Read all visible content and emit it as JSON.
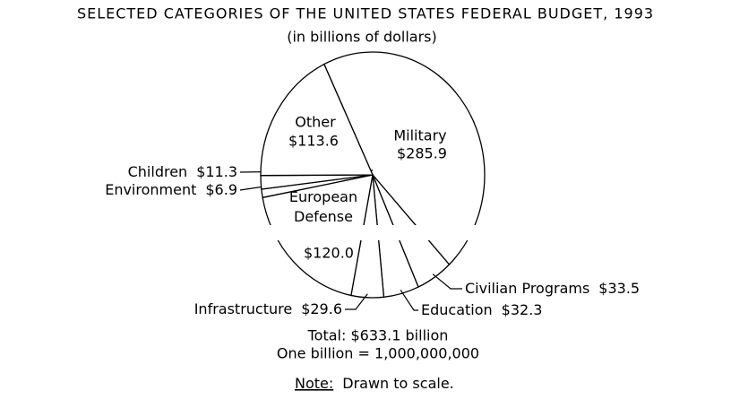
{
  "chart_data": {
    "type": "pie",
    "title": "SELECTED CATEGORIES OF THE UNITED STATES FEDERAL BUDGET, 1993",
    "subtitle": "(in billions of dollars)",
    "categories": [
      "Military",
      "Civilian Programs",
      "Education",
      "Infrastructure",
      "European Defense",
      "Environment",
      "Children",
      "Other"
    ],
    "values": [
      285.9,
      33.5,
      32.3,
      29.6,
      120.0,
      6.9,
      11.3,
      113.6
    ],
    "value_labels": [
      "$285.9",
      "$33.5",
      "$32.3",
      "$29.6",
      "$120.0",
      "$6.9",
      "$11.3",
      "$113.6"
    ],
    "color": "#ffffff",
    "total": "Total:  $633.1 billion",
    "definition": "One billion = 1,000,000,000",
    "note_label": "Note:",
    "note_text": "Drawn to scale."
  }
}
